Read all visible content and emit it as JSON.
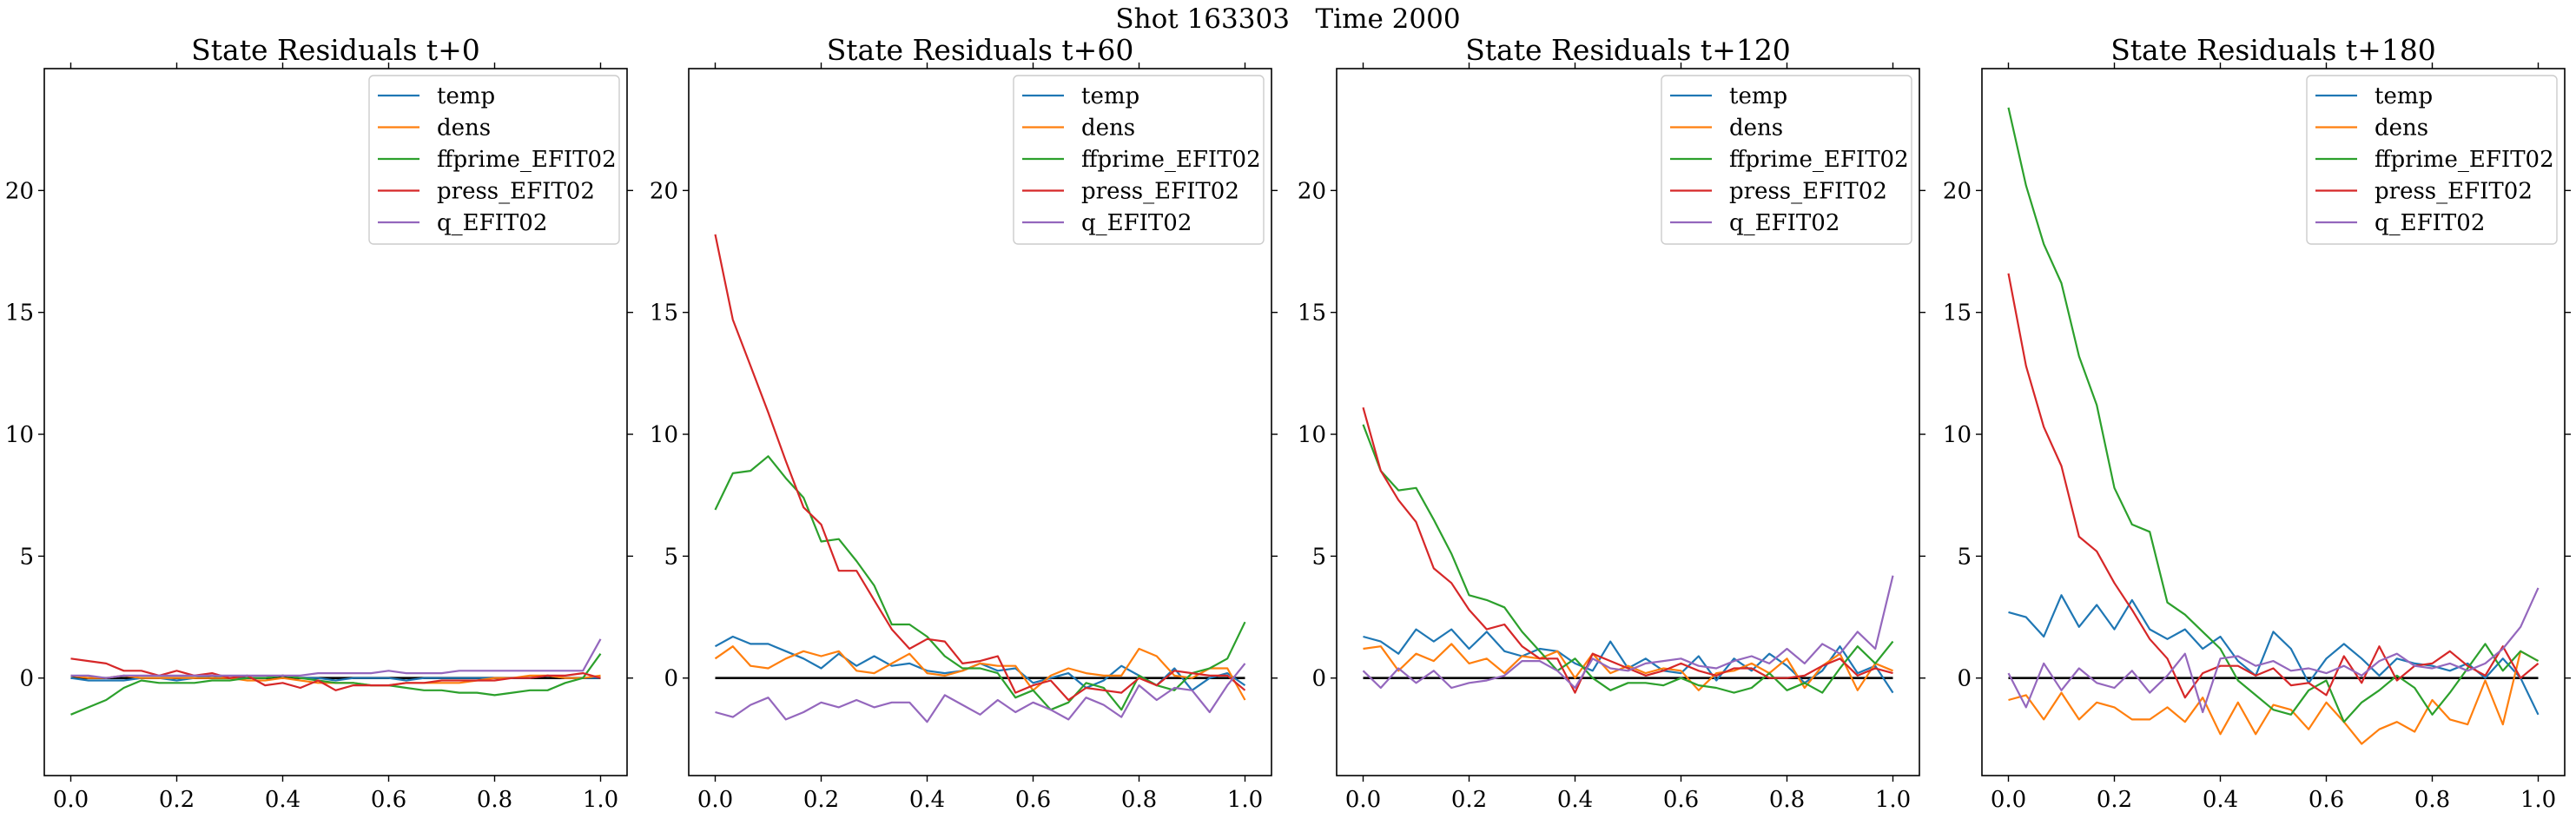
{
  "figure": {
    "suptitle": "Shot 163303   Time 2000"
  },
  "colors": {
    "temp": "#1f77b4",
    "dens": "#ff7f0e",
    "ffprime_EFIT02": "#2ca02c",
    "press_EFIT02": "#d62728",
    "q_EFIT02": "#9467bd",
    "zero_line": "#000000"
  },
  "chart_data": [
    {
      "type": "line",
      "title": "State Residuals t+0",
      "xlim": [
        -0.05,
        1.05
      ],
      "ylim": [
        -4,
        25
      ],
      "xticks": [
        0.0,
        0.2,
        0.4,
        0.6,
        0.8,
        1.0
      ],
      "xtick_labels": [
        "0.0",
        "0.2",
        "0.4",
        "0.6",
        "0.8",
        "1.0"
      ],
      "yticks": [
        0,
        5,
        10,
        15,
        20
      ],
      "ytick_labels": [
        "0",
        "5",
        "10",
        "15",
        "20"
      ],
      "legend_position": "top-right",
      "x": [
        0.0,
        0.0333,
        0.0667,
        0.1,
        0.1333,
        0.1667,
        0.2,
        0.2333,
        0.2667,
        0.3,
        0.3333,
        0.3667,
        0.4,
        0.4333,
        0.4667,
        0.5,
        0.5333,
        0.5667,
        0.6,
        0.6333,
        0.6667,
        0.7,
        0.7333,
        0.7667,
        0.8,
        0.8333,
        0.8667,
        0.9,
        0.9333,
        0.9667,
        1.0
      ],
      "series": [
        {
          "name": "temp",
          "values": [
            0.0,
            -0.1,
            -0.1,
            -0.1,
            0.0,
            0.0,
            -0.1,
            0.0,
            0.1,
            0.0,
            0.0,
            0.0,
            0.1,
            0.0,
            0.0,
            -0.1,
            0.0,
            0.0,
            0.0,
            -0.1,
            0.0,
            0.0,
            0.0,
            0.0,
            0.0,
            0.0,
            0.0,
            0.1,
            0.0,
            0.0,
            0.0
          ]
        },
        {
          "name": "dens",
          "values": [
            0.1,
            0.0,
            0.0,
            0.1,
            0.0,
            0.0,
            0.0,
            0.0,
            0.0,
            0.0,
            -0.1,
            -0.1,
            0.0,
            -0.1,
            -0.2,
            -0.2,
            -0.2,
            -0.3,
            -0.3,
            -0.2,
            -0.2,
            -0.2,
            -0.2,
            -0.1,
            0.0,
            0.0,
            0.1,
            0.1,
            0.0,
            0.0,
            0.1
          ]
        },
        {
          "name": "ffprime_EFIT02",
          "values": [
            -1.5,
            -1.2,
            -0.9,
            -0.4,
            -0.1,
            -0.2,
            -0.2,
            -0.2,
            -0.1,
            -0.1,
            0.0,
            0.0,
            0.1,
            0.0,
            -0.1,
            -0.2,
            -0.2,
            -0.3,
            -0.3,
            -0.4,
            -0.5,
            -0.5,
            -0.6,
            -0.6,
            -0.7,
            -0.6,
            -0.5,
            -0.5,
            -0.2,
            0.0,
            1.0
          ]
        },
        {
          "name": "press_EFIT02",
          "values": [
            0.8,
            0.7,
            0.6,
            0.3,
            0.3,
            0.1,
            0.3,
            0.1,
            0.2,
            0.0,
            0.1,
            -0.3,
            -0.2,
            -0.4,
            -0.1,
            -0.5,
            -0.3,
            -0.3,
            -0.3,
            -0.2,
            -0.2,
            -0.1,
            -0.1,
            -0.1,
            -0.1,
            0.0,
            0.0,
            0.1,
            0.1,
            0.2,
            0.0
          ]
        },
        {
          "name": "q_EFIT02",
          "values": [
            0.1,
            0.1,
            0.0,
            0.1,
            0.1,
            0.1,
            0.1,
            0.1,
            0.1,
            0.1,
            0.1,
            0.1,
            0.1,
            0.1,
            0.2,
            0.2,
            0.2,
            0.2,
            0.3,
            0.2,
            0.2,
            0.2,
            0.3,
            0.3,
            0.3,
            0.3,
            0.3,
            0.3,
            0.3,
            0.3,
            1.6
          ]
        }
      ]
    },
    {
      "type": "line",
      "title": "State Residuals t+60",
      "xlim": [
        -0.05,
        1.05
      ],
      "ylim": [
        -4,
        25
      ],
      "xticks": [
        0.0,
        0.2,
        0.4,
        0.6,
        0.8,
        1.0
      ],
      "xtick_labels": [
        "0.0",
        "0.2",
        "0.4",
        "0.6",
        "0.8",
        "1.0"
      ],
      "yticks": [
        0,
        5,
        10,
        15,
        20
      ],
      "ytick_labels": [
        "0",
        "5",
        "10",
        "15",
        "20"
      ],
      "legend_position": "top-right",
      "x": [
        0.0,
        0.0333,
        0.0667,
        0.1,
        0.1333,
        0.1667,
        0.2,
        0.2333,
        0.2667,
        0.3,
        0.3333,
        0.3667,
        0.4,
        0.4333,
        0.4667,
        0.5,
        0.5333,
        0.5667,
        0.6,
        0.6333,
        0.6667,
        0.7,
        0.7333,
        0.7667,
        0.8,
        0.8333,
        0.8667,
        0.9,
        0.9333,
        0.9667,
        1.0
      ],
      "series": [
        {
          "name": "temp",
          "values": [
            1.3,
            1.7,
            1.4,
            1.4,
            1.1,
            0.8,
            0.4,
            1.0,
            0.5,
            0.9,
            0.5,
            0.6,
            0.3,
            0.2,
            0.3,
            0.6,
            0.3,
            0.4,
            -0.2,
            0.0,
            0.2,
            -0.4,
            -0.1,
            0.5,
            0.1,
            -0.3,
            0.4,
            -0.5,
            0.0,
            0.2,
            -0.3
          ]
        },
        {
          "name": "dens",
          "values": [
            0.8,
            1.3,
            0.5,
            0.4,
            0.8,
            1.1,
            0.9,
            1.1,
            0.3,
            0.2,
            0.6,
            1.0,
            0.2,
            0.1,
            0.3,
            0.6,
            0.5,
            0.5,
            -0.5,
            0.1,
            0.4,
            0.2,
            0.1,
            0.1,
            1.2,
            0.9,
            0.1,
            0.0,
            0.4,
            0.4,
            -0.9
          ]
        },
        {
          "name": "ffprime_EFIT02",
          "values": [
            6.9,
            8.4,
            8.5,
            9.1,
            8.2,
            7.4,
            5.6,
            5.7,
            4.8,
            3.8,
            2.2,
            2.2,
            1.7,
            0.9,
            0.4,
            0.4,
            0.2,
            -0.8,
            -0.5,
            -1.3,
            -1.0,
            -0.2,
            -0.4,
            -1.3,
            0.1,
            -0.3,
            -0.5,
            0.2,
            0.4,
            0.8,
            2.3
          ]
        },
        {
          "name": "press_EFIT02",
          "values": [
            18.2,
            14.7,
            12.8,
            10.9,
            8.9,
            7.0,
            6.3,
            4.4,
            4.4,
            3.2,
            2.0,
            1.2,
            1.6,
            1.5,
            0.6,
            0.7,
            0.9,
            -0.6,
            -0.3,
            -0.1,
            -0.9,
            -0.4,
            -0.5,
            -0.6,
            0.0,
            -0.3,
            0.3,
            0.2,
            0.1,
            0.1,
            -0.5
          ]
        },
        {
          "name": "q_EFIT02",
          "values": [
            -1.4,
            -1.6,
            -1.1,
            -0.8,
            -1.7,
            -1.4,
            -1.0,
            -1.2,
            -0.9,
            -1.2,
            -1.0,
            -1.0,
            -1.8,
            -0.7,
            -1.1,
            -1.5,
            -0.9,
            -1.4,
            -1.0,
            -1.3,
            -1.7,
            -0.8,
            -1.1,
            -1.6,
            -0.3,
            -0.9,
            -0.4,
            -0.5,
            -1.4,
            -0.3,
            0.6
          ]
        }
      ]
    },
    {
      "type": "line",
      "title": "State Residuals t+120",
      "xlim": [
        -0.05,
        1.05
      ],
      "ylim": [
        -4,
        25
      ],
      "xticks": [
        0.0,
        0.2,
        0.4,
        0.6,
        0.8,
        1.0
      ],
      "xtick_labels": [
        "0.0",
        "0.2",
        "0.4",
        "0.6",
        "0.8",
        "1.0"
      ],
      "yticks": [
        0,
        5,
        10,
        15,
        20
      ],
      "ytick_labels": [
        "0",
        "5",
        "10",
        "15",
        "20"
      ],
      "legend_position": "top-right",
      "x": [
        0.0,
        0.0333,
        0.0667,
        0.1,
        0.1333,
        0.1667,
        0.2,
        0.2333,
        0.2667,
        0.3,
        0.3333,
        0.3667,
        0.4,
        0.4333,
        0.4667,
        0.5,
        0.5333,
        0.5667,
        0.6,
        0.6333,
        0.6667,
        0.7,
        0.7333,
        0.7667,
        0.8,
        0.8333,
        0.8667,
        0.9,
        0.9333,
        0.9667,
        1.0
      ],
      "series": [
        {
          "name": "temp",
          "values": [
            1.7,
            1.5,
            1.0,
            2.0,
            1.5,
            2.0,
            1.2,
            1.9,
            1.1,
            0.9,
            1.2,
            1.1,
            0.6,
            0.3,
            1.5,
            0.4,
            0.8,
            0.3,
            0.2,
            0.9,
            -0.1,
            0.8,
            0.3,
            1.0,
            0.5,
            -0.2,
            0.3,
            1.3,
            0.2,
            0.5,
            -0.6
          ]
        },
        {
          "name": "dens",
          "values": [
            1.2,
            1.3,
            0.3,
            1.0,
            0.7,
            1.4,
            0.6,
            0.8,
            0.2,
            0.9,
            0.8,
            1.1,
            0.0,
            1.0,
            0.2,
            0.5,
            0.2,
            0.4,
            0.3,
            -0.5,
            0.2,
            0.3,
            0.6,
            0.2,
            0.8,
            -0.4,
            0.5,
            1.0,
            -0.5,
            0.6,
            0.3
          ]
        },
        {
          "name": "ffprime_EFIT02",
          "values": [
            10.4,
            8.5,
            7.7,
            7.8,
            6.5,
            5.1,
            3.4,
            3.2,
            2.9,
            1.9,
            1.1,
            0.3,
            0.8,
            0.0,
            -0.5,
            -0.2,
            -0.2,
            -0.3,
            0.0,
            -0.3,
            -0.4,
            -0.6,
            -0.4,
            0.2,
            -0.5,
            -0.2,
            -0.6,
            0.4,
            1.3,
            0.6,
            1.5
          ]
        },
        {
          "name": "press_EFIT02",
          "values": [
            11.1,
            8.5,
            7.3,
            6.4,
            4.5,
            3.9,
            2.8,
            2.0,
            2.2,
            1.3,
            0.8,
            0.8,
            -0.6,
            1.0,
            0.7,
            0.4,
            0.1,
            0.3,
            0.6,
            0.3,
            0.1,
            0.4,
            0.4,
            0.0,
            0.0,
            0.1,
            0.5,
            0.8,
            0.1,
            0.4,
            0.2
          ]
        },
        {
          "name": "q_EFIT02",
          "values": [
            0.3,
            -0.4,
            0.4,
            -0.2,
            0.3,
            -0.4,
            -0.2,
            -0.1,
            0.1,
            0.7,
            0.7,
            0.3,
            -0.4,
            0.8,
            0.4,
            0.3,
            0.6,
            0.7,
            0.8,
            0.5,
            0.4,
            0.7,
            0.9,
            0.6,
            1.2,
            0.6,
            1.4,
            1.0,
            1.9,
            1.2,
            4.2
          ]
        }
      ]
    },
    {
      "type": "line",
      "title": "State Residuals t+180",
      "xlim": [
        -0.05,
        1.05
      ],
      "ylim": [
        -4,
        25
      ],
      "xticks": [
        0.0,
        0.2,
        0.4,
        0.6,
        0.8,
        1.0
      ],
      "xtick_labels": [
        "0.0",
        "0.2",
        "0.4",
        "0.6",
        "0.8",
        "1.0"
      ],
      "yticks": [
        0,
        5,
        10,
        15,
        20
      ],
      "ytick_labels": [
        "0",
        "5",
        "10",
        "15",
        "20"
      ],
      "legend_position": "top-right",
      "x": [
        0.0,
        0.0333,
        0.0667,
        0.1,
        0.1333,
        0.1667,
        0.2,
        0.2333,
        0.2667,
        0.3,
        0.3333,
        0.3667,
        0.4,
        0.4333,
        0.4667,
        0.5,
        0.5333,
        0.5667,
        0.6,
        0.6333,
        0.6667,
        0.7,
        0.7333,
        0.7667,
        0.8,
        0.8333,
        0.8667,
        0.9,
        0.9333,
        0.9667,
        1.0
      ],
      "series": [
        {
          "name": "temp",
          "values": [
            2.7,
            2.5,
            1.7,
            3.4,
            2.1,
            3.0,
            2.0,
            3.2,
            2.0,
            1.6,
            2.0,
            1.2,
            1.7,
            0.7,
            0.1,
            1.9,
            1.2,
            -0.2,
            0.8,
            1.4,
            0.8,
            0.1,
            0.8,
            0.6,
            0.5,
            0.3,
            0.6,
            0.0,
            0.8,
            0.0,
            -1.5
          ]
        },
        {
          "name": "dens",
          "values": [
            -0.9,
            -0.7,
            -1.7,
            -0.6,
            -1.7,
            -1.0,
            -1.2,
            -1.7,
            -1.7,
            -1.2,
            -1.8,
            -0.8,
            -2.3,
            -1.0,
            -2.3,
            -1.1,
            -1.3,
            -2.1,
            -1.0,
            -1.8,
            -2.7,
            -2.1,
            -1.8,
            -2.2,
            -0.9,
            -1.7,
            -1.9,
            -0.1,
            -1.9,
            1.1,
            0.7
          ]
        },
        {
          "name": "ffprime_EFIT02",
          "values": [
            23.4,
            20.2,
            17.8,
            16.2,
            13.2,
            11.2,
            7.8,
            6.3,
            6.0,
            3.1,
            2.6,
            1.9,
            1.2,
            -0.1,
            -0.7,
            -1.3,
            -1.5,
            -0.5,
            -0.1,
            -1.8,
            -1.0,
            -0.5,
            0.1,
            -0.4,
            -1.5,
            -0.6,
            0.4,
            1.4,
            0.3,
            1.1,
            0.7
          ]
        },
        {
          "name": "press_EFIT02",
          "values": [
            16.6,
            12.8,
            10.3,
            8.7,
            5.8,
            5.2,
            3.9,
            2.8,
            1.6,
            0.8,
            -0.8,
            0.2,
            0.5,
            0.5,
            0.1,
            0.4,
            -0.3,
            -0.2,
            -0.7,
            0.9,
            -0.2,
            1.3,
            -0.1,
            0.5,
            0.6,
            1.1,
            0.5,
            0.1,
            1.3,
            0.0,
            0.6
          ]
        },
        {
          "name": "q_EFIT02",
          "values": [
            0.2,
            -1.2,
            0.6,
            -0.5,
            0.4,
            -0.2,
            -0.4,
            0.3,
            -0.6,
            0.1,
            1.0,
            -1.4,
            0.8,
            0.9,
            0.5,
            0.7,
            0.3,
            0.4,
            0.2,
            0.5,
            0.1,
            0.7,
            1.0,
            0.5,
            0.4,
            0.6,
            0.3,
            0.6,
            1.2,
            2.1,
            3.7
          ]
        }
      ]
    }
  ]
}
